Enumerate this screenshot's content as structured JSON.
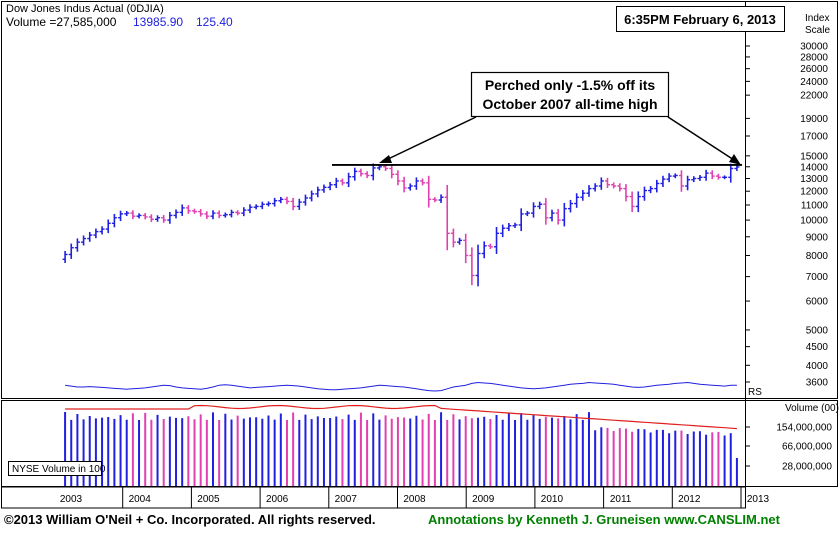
{
  "header": {
    "index_name": "Dow Jones Indus Actual  (0DJIA)",
    "volume_label": "Volume =27,585,000",
    "last_price": "13985.90",
    "change": "125.40",
    "timestamp": "6:35PM February 6, 2013",
    "scale_title_1": "Index",
    "scale_title_2": "Scale"
  },
  "annotation": {
    "line1": "Perched only -1.5% off its",
    "line2": "October 2007 all-time high"
  },
  "labels": {
    "rs": "RS",
    "volume_unit": "Volume (00)",
    "volume_legend": "NYSE Volume in 100"
  },
  "footer": {
    "copyright": "©2013 William O'Neil + Co. Incorporated. All rights reserved.",
    "annotation_credit": "Annotations by Kenneth J. Gruneisen www.CANSLIM.net"
  },
  "colors": {
    "up_bar": "#2020e0",
    "down_bar": "#e040b0",
    "rs_line": "#2020e0",
    "volume_avg": "#e02020",
    "credit_text": "#008000",
    "volume_change": "#2020e0"
  },
  "chart_data": {
    "type": "ohlc",
    "price_axis": {
      "scale": "log",
      "ticks": [
        30000,
        28000,
        26000,
        24000,
        22000,
        19000,
        17000,
        15000,
        14000,
        13000,
        12000,
        11000,
        10000,
        9000,
        8000,
        7000,
        6000,
        5000,
        4500,
        4000,
        3600
      ]
    },
    "x_axis": {
      "labels": [
        "2003",
        "2004",
        "2005",
        "2006",
        "2007",
        "2008",
        "2009",
        "2010",
        "2011",
        "2012",
        "2013"
      ]
    },
    "resistance_line": 14165,
    "monthly_close": [
      8050,
      8400,
      8700,
      8900,
      9100,
      9300,
      9450,
      9800,
      10150,
      10400,
      10450,
      10250,
      10300,
      10200,
      10050,
      10150,
      10000,
      10300,
      10500,
      10800,
      10600,
      10550,
      10400,
      10250,
      10450,
      10300,
      10350,
      10500,
      10450,
      10650,
      10850,
      10900,
      11050,
      11100,
      11300,
      11400,
      11250,
      10900,
      11200,
      11500,
      11800,
      12100,
      12300,
      12500,
      12800,
      12650,
      13150,
      13600,
      13400,
      13250,
      13900,
      14000,
      13850,
      13350,
      12800,
      12250,
      12400,
      12800,
      12650,
      11400,
      11350,
      11550,
      9200,
      8700,
      8800,
      8000,
      7050,
      8100,
      8500,
      8450,
      9200,
      9500,
      9650,
      9700,
      10400,
      10450,
      10900,
      11050,
      10150,
      10450,
      10000,
      10750,
      11100,
      11550,
      11850,
      12200,
      12400,
      12800,
      12500,
      12400,
      12200,
      11600,
      10900,
      11600,
      12050,
      12200,
      12600,
      12950,
      13200,
      13250,
      12400,
      12900,
      13000,
      13100,
      13450,
      13200,
      13100,
      13100,
      13850,
      13985
    ],
    "rs_line": [
      0.6,
      0.55,
      0.5,
      0.5,
      0.52,
      0.5,
      0.48,
      0.45,
      0.42,
      0.4,
      0.38,
      0.4,
      0.42,
      0.45,
      0.5,
      0.55,
      0.6,
      0.58,
      0.5,
      0.45,
      0.42,
      0.4,
      0.38,
      0.42,
      0.5,
      0.6,
      0.62,
      0.6,
      0.55,
      0.5,
      0.45,
      0.48,
      0.5,
      0.52,
      0.55,
      0.58,
      0.6,
      0.58,
      0.55,
      0.5,
      0.45,
      0.4,
      0.38,
      0.35,
      0.35,
      0.38,
      0.4,
      0.42,
      0.45,
      0.5,
      0.55,
      0.6,
      0.58,
      0.55,
      0.52,
      0.5,
      0.45,
      0.4,
      0.35,
      0.3,
      0.28,
      0.3,
      0.4,
      0.5,
      0.55,
      0.6,
      0.7,
      0.75,
      0.72,
      0.7,
      0.65,
      0.6,
      0.55,
      0.5,
      0.45,
      0.42,
      0.4,
      0.42,
      0.45,
      0.5,
      0.55,
      0.6,
      0.65,
      0.68,
      0.7,
      0.75,
      0.72,
      0.7,
      0.68,
      0.65,
      0.6,
      0.55,
      0.5,
      0.48,
      0.5,
      0.55,
      0.6,
      0.62,
      0.65,
      0.7,
      0.72,
      0.75,
      0.7,
      0.65,
      0.62,
      0.6,
      0.58,
      0.55,
      0.6,
      0.6
    ],
    "volume_axis": {
      "ticks": [
        "154,000,000",
        "66,000,000",
        "28,000,000"
      ]
    }
  }
}
